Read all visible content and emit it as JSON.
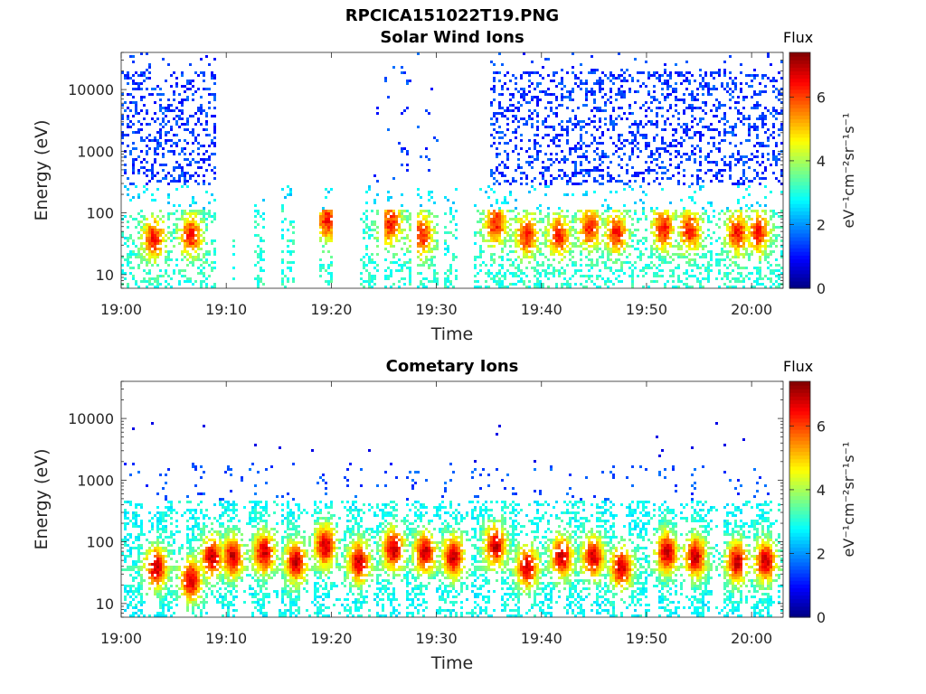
{
  "figure_title": "RPCICA151022T19.PNG",
  "chart_data": [
    {
      "type": "heatmap",
      "title": "Solar Wind Ions",
      "xlabel": "Time",
      "ylabel": "Energy (eV)",
      "x_ticks": [
        "19:00",
        "19:10",
        "19:20",
        "19:30",
        "19:40",
        "19:50",
        "20:00"
      ],
      "y_ticks": [
        "10",
        "100",
        "1000",
        "10000"
      ],
      "yscale": "log",
      "ylim": [
        6,
        40000
      ],
      "xlim_minutes": [
        0,
        63
      ],
      "colorbar": {
        "label_top": "Flux",
        "label_side": "eV⁻¹cm⁻²sr⁻¹s⁻¹",
        "ticks": [
          "0",
          "2",
          "4",
          "6"
        ],
        "range": [
          0,
          7.4
        ],
        "colormap": "jet"
      },
      "active_intervals_min": [
        [
          0,
          9
        ],
        [
          10.5,
          10.8
        ],
        [
          12.5,
          13.5
        ],
        [
          15,
          16.5
        ],
        [
          18.8,
          20
        ],
        [
          22.5,
          24.5
        ],
        [
          25,
          27.5
        ],
        [
          28,
          30
        ],
        [
          30.5,
          32
        ],
        [
          33.5,
          63
        ]
      ],
      "high_energy_intervals_min": [
        [
          0,
          9
        ],
        [
          24,
          30
        ],
        [
          35,
          63
        ]
      ],
      "cores": [
        [
          3,
          40
        ],
        [
          6.5,
          45
        ],
        [
          19.5,
          80
        ],
        [
          25.5,
          70
        ],
        [
          28.5,
          45
        ],
        [
          35.5,
          70
        ],
        [
          38.5,
          45
        ],
        [
          41.5,
          45
        ],
        [
          44.5,
          60
        ],
        [
          47,
          50
        ],
        [
          51.5,
          60
        ],
        [
          54,
          55
        ],
        [
          58.5,
          50
        ],
        [
          60.5,
          50
        ]
      ]
    },
    {
      "type": "heatmap",
      "title": "Cometary Ions",
      "xlabel": "Time",
      "ylabel": "Energy (eV)",
      "x_ticks": [
        "19:00",
        "19:10",
        "19:20",
        "19:30",
        "19:40",
        "19:50",
        "20:00"
      ],
      "y_ticks": [
        "10",
        "100",
        "1000",
        "10000"
      ],
      "yscale": "log",
      "ylim": [
        6,
        40000
      ],
      "xlim_minutes": [
        0,
        63
      ],
      "colorbar": {
        "label_top": "Flux",
        "label_side": "eV⁻¹cm⁻²sr⁻¹s⁻¹",
        "ticks": [
          "0",
          "2",
          "4",
          "6"
        ],
        "range": [
          0,
          7.4
        ],
        "colormap": "jet"
      },
      "active_intervals_min": [
        [
          0,
          63
        ]
      ],
      "cores": [
        [
          3.2,
          40
        ],
        [
          6.5,
          25
        ],
        [
          8.5,
          60
        ],
        [
          10.5,
          60
        ],
        [
          13.5,
          70
        ],
        [
          16.5,
          50
        ],
        [
          19.3,
          90
        ],
        [
          22.5,
          50
        ],
        [
          25.8,
          80
        ],
        [
          28.8,
          70
        ],
        [
          31.5,
          60
        ],
        [
          35.5,
          90
        ],
        [
          38.5,
          40
        ],
        [
          41.8,
          60
        ],
        [
          44.8,
          60
        ],
        [
          47.5,
          40
        ],
        [
          51.8,
          70
        ],
        [
          54.5,
          60
        ],
        [
          58.5,
          50
        ],
        [
          61.2,
          50
        ]
      ]
    }
  ]
}
